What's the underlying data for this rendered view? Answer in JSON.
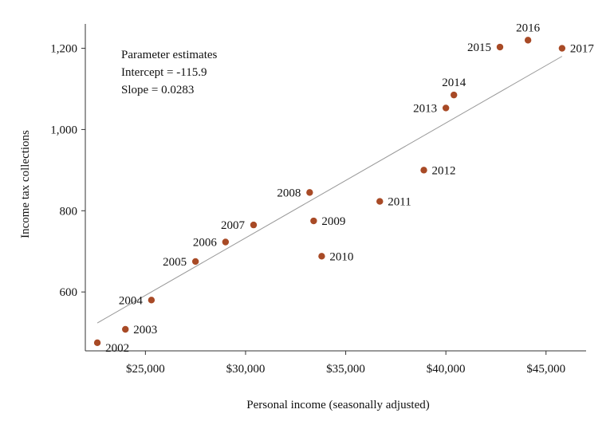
{
  "chart_data": {
    "type": "scatter",
    "xlabel": "Personal income (seasonally adjusted)",
    "ylabel": "Income tax collections",
    "xlim": [
      22000,
      47000
    ],
    "ylim": [
      455,
      1260
    ],
    "x_ticks": [
      25000,
      30000,
      35000,
      40000,
      45000
    ],
    "x_tick_labels": [
      "$25,000",
      "$30,000",
      "$35,000",
      "$40,000",
      "$45,000"
    ],
    "y_ticks": [
      600,
      800,
      1000,
      1200
    ],
    "y_tick_labels": [
      "600",
      "800",
      "1,000",
      "1,200"
    ],
    "grid": false,
    "point_color": "#a84a26",
    "line_color": "#999999",
    "points": [
      {
        "label": "2002",
        "x": 22600,
        "y": 475
      },
      {
        "label": "2003",
        "x": 24000,
        "y": 508
      },
      {
        "label": "2004",
        "x": 25300,
        "y": 580
      },
      {
        "label": "2005",
        "x": 27500,
        "y": 675
      },
      {
        "label": "2006",
        "x": 29000,
        "y": 723
      },
      {
        "label": "2007",
        "x": 30400,
        "y": 765
      },
      {
        "label": "2008",
        "x": 33200,
        "y": 845
      },
      {
        "label": "2009",
        "x": 33400,
        "y": 775
      },
      {
        "label": "2010",
        "x": 33800,
        "y": 688
      },
      {
        "label": "2011",
        "x": 36700,
        "y": 823
      },
      {
        "label": "2012",
        "x": 38900,
        "y": 900
      },
      {
        "label": "2013",
        "x": 40000,
        "y": 1053
      },
      {
        "label": "2014",
        "x": 40400,
        "y": 1085
      },
      {
        "label": "2015",
        "x": 42700,
        "y": 1203
      },
      {
        "label": "2016",
        "x": 44100,
        "y": 1220
      },
      {
        "label": "2017",
        "x": 45800,
        "y": 1200
      }
    ],
    "fit_line": {
      "intercept": -115.9,
      "slope": 0.0283
    }
  },
  "annotation": {
    "title": "Parameter estimates",
    "intercept_text": "Intercept = -115.9",
    "slope_text": "Slope = 0.0283"
  }
}
